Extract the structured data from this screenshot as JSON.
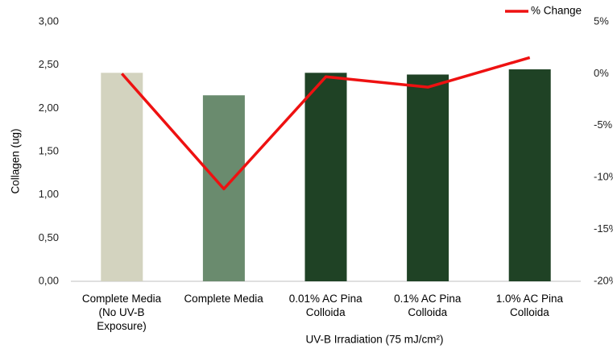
{
  "chart_data": {
    "type": "bar_line",
    "categories": [
      "Complete Media\n(No UV-B\nExposure)",
      "Complete Media",
      "0.01% AC Pina\nColloida",
      "0.1% AC Pina\nColloida",
      "1.0% AC Pina\nColloida"
    ],
    "series": [
      {
        "name": "Collagen",
        "type": "bar",
        "colors": [
          "#d3d3bf",
          "#6a8b6e",
          "#1f4225",
          "#1f4225",
          "#1f4225"
        ],
        "values": [
          2.41,
          2.15,
          2.41,
          2.39,
          2.45
        ]
      },
      {
        "name": "% Change",
        "type": "line",
        "axis": "y2",
        "color": "#ee1111",
        "values": [
          0,
          -11.1,
          -0.3,
          -1.3,
          1.55
        ]
      }
    ],
    "ylabel": "Collagen (ug)",
    "xlabel": "UV-B Irradiation (75 mJ/cm²)",
    "ylim": [
      0,
      3
    ],
    "yticks": [
      {
        "value": 0,
        "label": "0,00"
      },
      {
        "value": 0.5,
        "label": "0,50"
      },
      {
        "value": 1,
        "label": "1,00"
      },
      {
        "value": 1.5,
        "label": "1,50"
      },
      {
        "value": 2,
        "label": "2,00"
      },
      {
        "value": 2.5,
        "label": "2,50"
      },
      {
        "value": 3,
        "label": "3,00"
      }
    ],
    "y2lim": [
      -20,
      5
    ],
    "y2ticks": [
      {
        "value": -20,
        "label": "-20%"
      },
      {
        "value": -15,
        "label": "-15%"
      },
      {
        "value": -10,
        "label": "-10%"
      },
      {
        "value": -5,
        "label": "-5%"
      },
      {
        "value": 0,
        "label": "0%"
      },
      {
        "value": 5,
        "label": "5%"
      }
    ],
    "grid": false,
    "legend": "top-right"
  }
}
